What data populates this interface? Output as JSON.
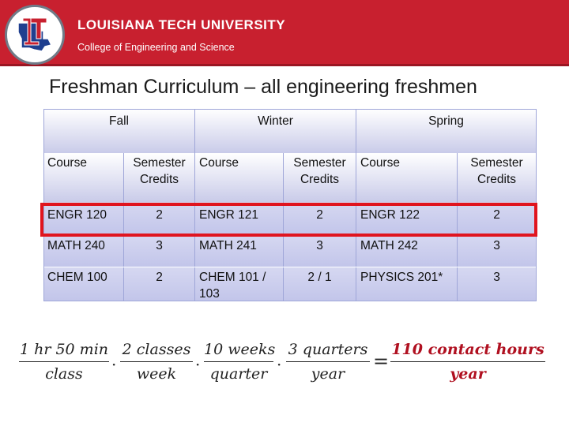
{
  "header": {
    "university_name": "LOUISIANA TECH UNIVERSITY",
    "college": "College of Engineering and Science",
    "logo_letters": "LT",
    "accent_color": "#c8202f"
  },
  "title": "Freshman Curriculum – all engineering freshmen",
  "table": {
    "terms": [
      "Fall",
      "Winter",
      "Spring"
    ],
    "col_course": "Course",
    "col_credits_line1": "Semester",
    "col_credits_line2": "Credits",
    "rows": [
      {
        "fall_course": "ENGR 120",
        "fall_cr": "2",
        "winter_course": "ENGR 121",
        "winter_cr": "2",
        "spring_course": "ENGR 122",
        "spring_cr": "2"
      },
      {
        "fall_course": "MATH 240",
        "fall_cr": "3",
        "winter_course": "MATH 241",
        "winter_cr": "3",
        "spring_course": "MATH 242",
        "spring_cr": "3"
      },
      {
        "fall_course": "CHEM 100",
        "fall_cr": "2",
        "winter_course_line1": "CHEM 101 /",
        "winter_course_line2": "103",
        "winter_cr": "2 / 1",
        "spring_course": "PHYSICS 201*",
        "spring_cr": "3"
      }
    ]
  },
  "equation": {
    "f1_num": "1 hr 50 min",
    "f1_den": "class",
    "f2_num": "2 classes",
    "f2_den": "week",
    "f3_num": "10 weeks",
    "f3_den": "quarter",
    "f4_num": "3 quarters",
    "f4_den": "year",
    "dot": "·",
    "equals": "=",
    "result_num": "110 contact hours",
    "result_den": "year"
  }
}
